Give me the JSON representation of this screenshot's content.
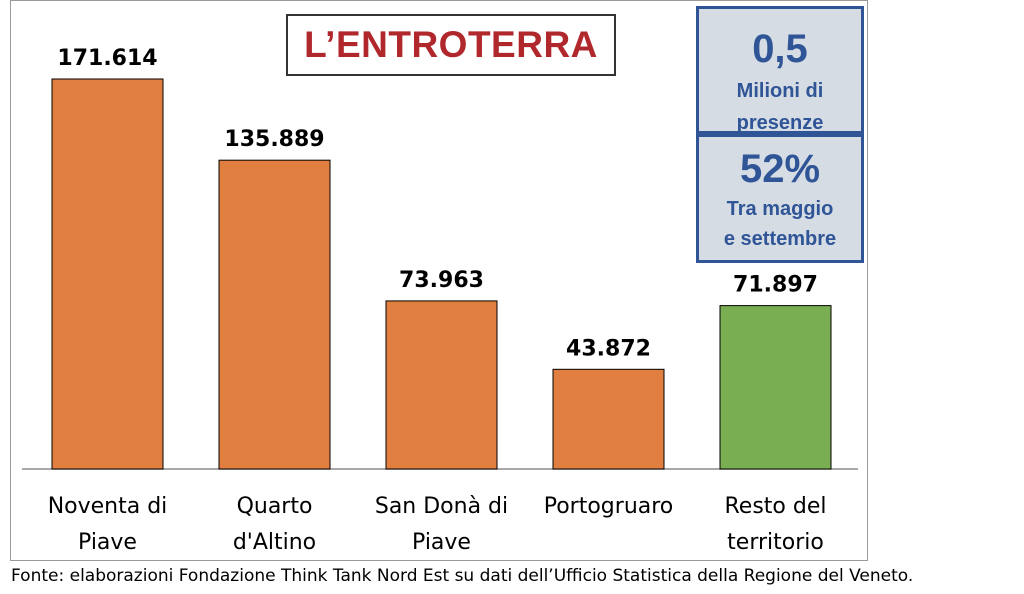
{
  "title": "L’ENTROTERRA",
  "stats": [
    {
      "value": "0,5",
      "label_line1": "Milioni di",
      "label_line2": "presenze"
    },
    {
      "value": "52%",
      "label_line1": "Tra maggio",
      "label_line2": "e settembre"
    }
  ],
  "source": "Fonte: elaborazioni Fondazione Think Tank Nord Est su dati dell’Ufficio Statistica della Regione del Veneto.",
  "colors": {
    "main_bar": "#e07f3f",
    "highlight_bar": "#7aae52",
    "title": "#b0282c",
    "stat_text": "#2f5597",
    "stat_bg": "#d6dce4"
  },
  "chart_data": {
    "type": "bar",
    "categories": [
      [
        "Noventa di",
        "Piave"
      ],
      [
        "Quarto",
        "d'Altino"
      ],
      [
        "San Donà di",
        "Piave"
      ],
      [
        "Portogruaro"
      ],
      [
        "Resto del",
        "territorio"
      ]
    ],
    "values": [
      171614,
      135889,
      73963,
      43872,
      71897
    ],
    "value_labels": [
      "171.614",
      "135.889",
      "73.963",
      "43.872",
      "71.897"
    ],
    "highlight_index": 4,
    "ylim": [
      0,
      175000
    ],
    "grid": false,
    "legend": "none"
  }
}
